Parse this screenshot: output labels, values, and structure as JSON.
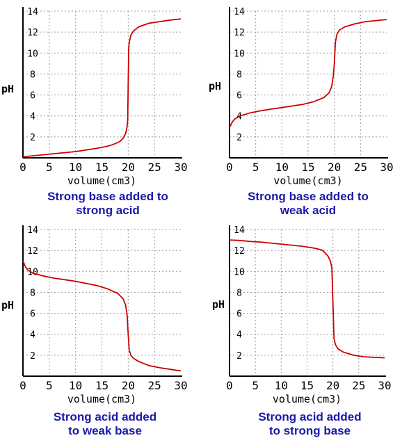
{
  "chart_data": [
    {
      "type": "line",
      "caption": [
        "Strong base added to",
        "strong acid"
      ],
      "xlabel": "volume(cm3)",
      "ylabel": "pH",
      "xlim": [
        0,
        30
      ],
      "ylim": [
        0,
        14
      ],
      "x_ticks": [
        "0",
        "5",
        "10",
        "15",
        "20",
        "25",
        "30"
      ],
      "y_ticks": [
        "2",
        "4",
        "6",
        "8",
        "10",
        "12",
        "14"
      ],
      "grid": true,
      "line_color": "#cc0000",
      "series": [
        {
          "x": [
            0,
            2,
            4,
            6,
            8,
            10,
            12,
            14,
            16,
            17,
            18,
            18.5,
            19,
            19.5,
            19.8,
            19.9,
            20,
            20.1,
            20.2,
            20.5,
            21,
            22,
            24,
            26,
            28,
            30
          ],
          "y": [
            0.1,
            0.2,
            0.3,
            0.4,
            0.5,
            0.6,
            0.75,
            0.9,
            1.1,
            1.25,
            1.45,
            1.6,
            1.85,
            2.3,
            3.0,
            3.6,
            7.0,
            10.4,
            11.0,
            11.7,
            12.1,
            12.5,
            12.85,
            13.0,
            13.15,
            13.25
          ]
        }
      ]
    },
    {
      "type": "line",
      "caption": [
        "Strong base added to",
        "weak acid"
      ],
      "xlabel": "volume(cm3)",
      "ylabel": "pH",
      "xlim": [
        0,
        30
      ],
      "ylim": [
        0,
        14
      ],
      "x_ticks": [
        "0",
        "5",
        "10",
        "15",
        "20",
        "25",
        "30"
      ],
      "y_ticks": [
        "2",
        "4",
        "6",
        "8",
        "10",
        "12",
        "14"
      ],
      "grid": true,
      "line_color": "#cc0000",
      "series": [
        {
          "x": [
            0,
            0.5,
            1,
            2,
            4,
            6,
            8,
            10,
            12,
            14,
            16,
            18,
            19,
            19.5,
            19.8,
            20,
            20.2,
            20.5,
            21,
            22,
            24,
            26,
            28,
            30
          ],
          "y": [
            2.9,
            3.4,
            3.7,
            4.0,
            4.3,
            4.5,
            4.65,
            4.8,
            4.95,
            5.1,
            5.35,
            5.75,
            6.2,
            6.8,
            7.8,
            9.0,
            11.0,
            11.8,
            12.2,
            12.5,
            12.8,
            13.0,
            13.1,
            13.2
          ]
        }
      ]
    },
    {
      "type": "line",
      "caption": [
        "Strong acid added",
        "to weak base"
      ],
      "xlabel": "volume(cm3)",
      "ylabel": "pH",
      "xlim": [
        0,
        30
      ],
      "ylim": [
        0,
        14
      ],
      "x_ticks": [
        "0",
        "5",
        "10",
        "15",
        "20",
        "25",
        "30"
      ],
      "y_ticks": [
        "2",
        "4",
        "6",
        "8",
        "10",
        "12",
        "14"
      ],
      "grid": true,
      "line_color": "#cc0000",
      "series": [
        {
          "x": [
            0,
            0.5,
            1,
            2,
            4,
            6,
            8,
            10,
            12,
            14,
            16,
            18,
            19,
            19.5,
            19.8,
            20,
            20.2,
            20.5,
            21,
            22,
            24,
            26,
            28,
            30
          ],
          "y": [
            11.0,
            10.4,
            10.1,
            9.8,
            9.55,
            9.35,
            9.2,
            9.05,
            8.85,
            8.65,
            8.35,
            7.9,
            7.4,
            6.8,
            5.8,
            4.0,
            2.5,
            2.0,
            1.7,
            1.4,
            1.0,
            0.8,
            0.65,
            0.5
          ]
        }
      ]
    },
    {
      "type": "line",
      "caption": [
        "Strong acid added",
        "to strong base"
      ],
      "xlabel": "volume(cm3)",
      "ylabel": "pH",
      "xlim": [
        0,
        30
      ],
      "ylim": [
        0,
        14
      ],
      "x_ticks": [
        "0",
        "5",
        "10",
        "15",
        "20",
        "25",
        "30"
      ],
      "y_ticks": [
        "2",
        "4",
        "6",
        "8",
        "10",
        "12",
        "14"
      ],
      "grid": true,
      "line_color": "#cc0000",
      "series": [
        {
          "x": [
            0,
            2,
            4,
            6,
            8,
            10,
            12,
            14,
            16,
            17,
            18,
            19,
            19.5,
            19.8,
            20,
            20.2,
            20.5,
            21,
            22,
            24,
            26,
            28,
            30
          ],
          "y": [
            13.0,
            12.95,
            12.85,
            12.8,
            12.7,
            12.6,
            12.5,
            12.4,
            12.25,
            12.15,
            12.0,
            11.5,
            11.0,
            10.3,
            7.0,
            3.6,
            3.0,
            2.6,
            2.3,
            2.0,
            1.85,
            1.8,
            1.75
          ]
        }
      ]
    }
  ]
}
